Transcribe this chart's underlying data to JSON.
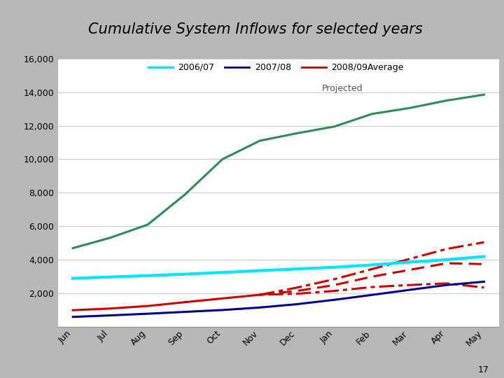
{
  "title": "Cumulative System Inflows for selected years",
  "header_bg": "#b8b8b8",
  "chart_bg": "#ffffff",
  "page_bg": "#b8b8b8",
  "months": [
    "Jun",
    "Jul",
    "Aug",
    "Sep",
    "Oct",
    "Nov",
    "Dec",
    "Jan",
    "Feb",
    "Mar",
    "Apr",
    "May"
  ],
  "ylim": [
    0,
    16000
  ],
  "yticks": [
    2000,
    4000,
    6000,
    8000,
    10000,
    12000,
    14000,
    16000
  ],
  "series_2006_07": [
    2900,
    2980,
    3060,
    3150,
    3250,
    3360,
    3460,
    3560,
    3700,
    3860,
    4010,
    4200
  ],
  "series_2007_08": [
    600,
    690,
    790,
    900,
    1010,
    1160,
    1360,
    1620,
    1910,
    2210,
    2500,
    2700
  ],
  "series_2008_09_actual": [
    1000,
    1100,
    1250,
    1480,
    1700,
    1920,
    null,
    null,
    null,
    null,
    null,
    null
  ],
  "series_2008_09_proj_upper": [
    null,
    null,
    null,
    null,
    null,
    1920,
    2350,
    2850,
    3450,
    4050,
    4650,
    5050
  ],
  "series_2008_09_proj_mid": [
    null,
    null,
    null,
    null,
    null,
    1920,
    2150,
    2500,
    3000,
    3400,
    3800,
    3750
  ],
  "series_2008_09_proj_lower": [
    null,
    null,
    null,
    null,
    null,
    1920,
    1980,
    2150,
    2380,
    2500,
    2600,
    2350
  ],
  "series_average": [
    4700,
    5320,
    6100,
    7900,
    10000,
    11100,
    11550,
    11950,
    12700,
    13050,
    13500,
    13850
  ],
  "color_2006_07": "#00e5ff",
  "color_2007_08": "#00008b",
  "color_2008_09": "#cc0000",
  "color_average": "#2e8b57",
  "legend_labels": [
    "2006/07",
    "2007/08",
    "2008/09Average"
  ],
  "projected_text": "Projected",
  "page_number": "17"
}
